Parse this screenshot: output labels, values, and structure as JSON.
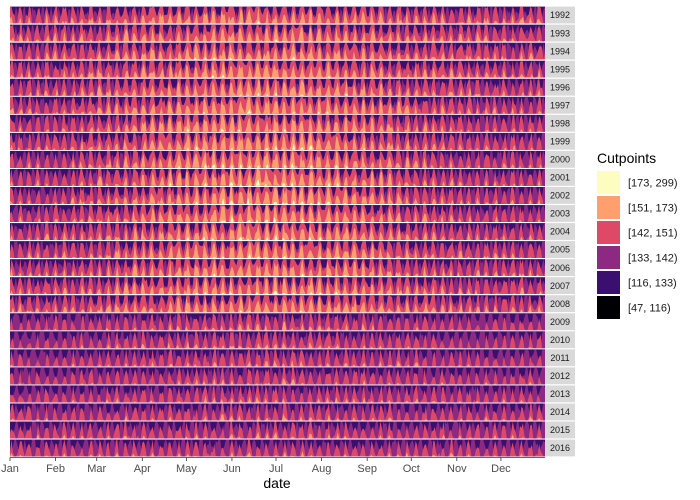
{
  "chart_data": {
    "type": "area",
    "subtype": "horizon",
    "xlabel": "date",
    "x_ticks": [
      "Jan",
      "Feb",
      "Mar",
      "Apr",
      "May",
      "Jun",
      "Jul",
      "Aug",
      "Sep",
      "Oct",
      "Nov",
      "Dec"
    ],
    "years": [
      "1992",
      "1993",
      "1994",
      "1995",
      "1996",
      "1997",
      "1998",
      "1999",
      "2000",
      "2001",
      "2002",
      "2003",
      "2004",
      "2005",
      "2006",
      "2007",
      "2008",
      "2009",
      "2010",
      "2011",
      "2012",
      "2013",
      "2014",
      "2015",
      "2016"
    ],
    "legend": {
      "title": "Cutpoints",
      "position": "right",
      "entries": [
        {
          "label": "[173, 299)",
          "color": "#FCFDBF"
        },
        {
          "label": "[151, 173)",
          "color": "#FE9F6D"
        },
        {
          "label": "[142, 151)",
          "color": "#DE4968"
        },
        {
          "label": "[133, 142)",
          "color": "#8C2981"
        },
        {
          "label": "[116, 133)",
          "color": "#3B0F70"
        },
        {
          "label": "[47, 116)",
          "color": "#000004"
        }
      ]
    },
    "panel_background": "#FFFFFF",
    "strip_background": "#D9D9D9"
  }
}
